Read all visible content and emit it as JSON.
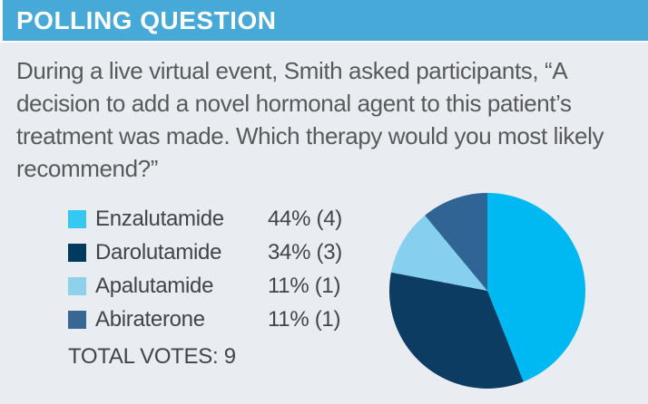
{
  "header": {
    "title": "POLLING QUESTION",
    "bg_color": "#47a9d7"
  },
  "question": "During a live virtual event, Smith asked participants, “A decision to add a novel hormonal agent to this patient’s treatment was made. Which therapy would you most likely recommend?”",
  "poll": {
    "items": [
      {
        "label": "Enzalutamide",
        "value": "44% (4)",
        "percent": 44,
        "votes": 4,
        "legend_color": "#35c9f2",
        "pie_color": "#00b9f2"
      },
      {
        "label": "Darolutamide",
        "value": "34% (3)",
        "percent": 34,
        "votes": 3,
        "legend_color": "#003a5e",
        "pie_color": "#0d3c63"
      },
      {
        "label": "Apalutamide",
        "value": "11% (1)",
        "percent": 11,
        "votes": 1,
        "legend_color": "#8ed1ea",
        "pie_color": "#87cfee"
      },
      {
        "label": "Abiraterone",
        "value": "11% (1)",
        "percent": 11,
        "votes": 1,
        "legend_color": "#366795",
        "pie_color": "#2f6494"
      }
    ],
    "total_label": "TOTAL VOTES: 9",
    "total_votes": 9
  },
  "chart_data": {
    "type": "pie",
    "title": "POLLING QUESTION",
    "categories": [
      "Enzalutamide",
      "Darolutamide",
      "Apalutamide",
      "Abiraterone"
    ],
    "values": [
      44,
      34,
      11,
      11
    ],
    "votes": [
      4,
      3,
      1,
      1
    ],
    "total_votes": 9,
    "colors": [
      "#00b9f2",
      "#0d3c63",
      "#87cfee",
      "#2f6494"
    ],
    "legend_position": "left",
    "start_angle_deg": 0,
    "direction": "clockwise"
  },
  "colors": {
    "background": "#e9edf2",
    "header_bar": "#47a9d7",
    "question_text": "#58595b",
    "legend_text": "#414549"
  }
}
